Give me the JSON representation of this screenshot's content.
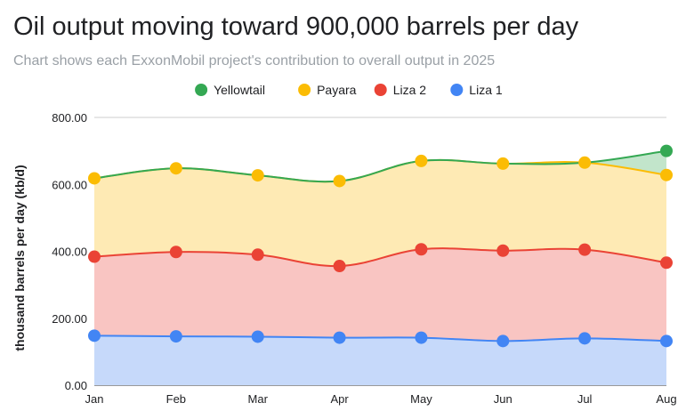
{
  "chart_data": {
    "type": "area",
    "stacked": true,
    "title": "Oil output moving toward 900,000 barrels per day",
    "subtitle": "Chart shows each ExxonMobil project's contribution to overall output in 2025",
    "ylabel": "thousand barrels per day (kb/d)",
    "xlabel": "",
    "categories": [
      "Jan",
      "Feb",
      "Mar",
      "Apr",
      "May",
      "Jun",
      "Jul",
      "Aug"
    ],
    "ylim": [
      0,
      800
    ],
    "yticks": [
      "0.00",
      "200.00",
      "400.00",
      "600.00",
      "800.00"
    ],
    "grid": true,
    "legend_position": "top",
    "series": [
      {
        "name": "Liza 1",
        "color": "#4285f4",
        "fill": "#c6d9fa",
        "values": [
          148,
          146,
          145,
          142,
          142,
          132,
          140,
          132
        ]
      },
      {
        "name": "Liza 2",
        "color": "#ea4335",
        "fill": "#f9c5c2",
        "values": [
          236,
          252,
          245,
          214,
          264,
          270,
          265,
          234
        ]
      },
      {
        "name": "Payara",
        "color": "#fbbc04",
        "fill": "#feeab4",
        "values": [
          234,
          250,
          237,
          254,
          264,
          260,
          260,
          262
        ]
      },
      {
        "name": "Yellowtail",
        "color": "#34a853",
        "fill": "#c2e5cb",
        "values": [
          0,
          0,
          0,
          0,
          0,
          0,
          0,
          72
        ]
      }
    ],
    "legend_order": [
      "Yellowtail",
      "Payara",
      "Liza 2",
      "Liza 1"
    ]
  }
}
